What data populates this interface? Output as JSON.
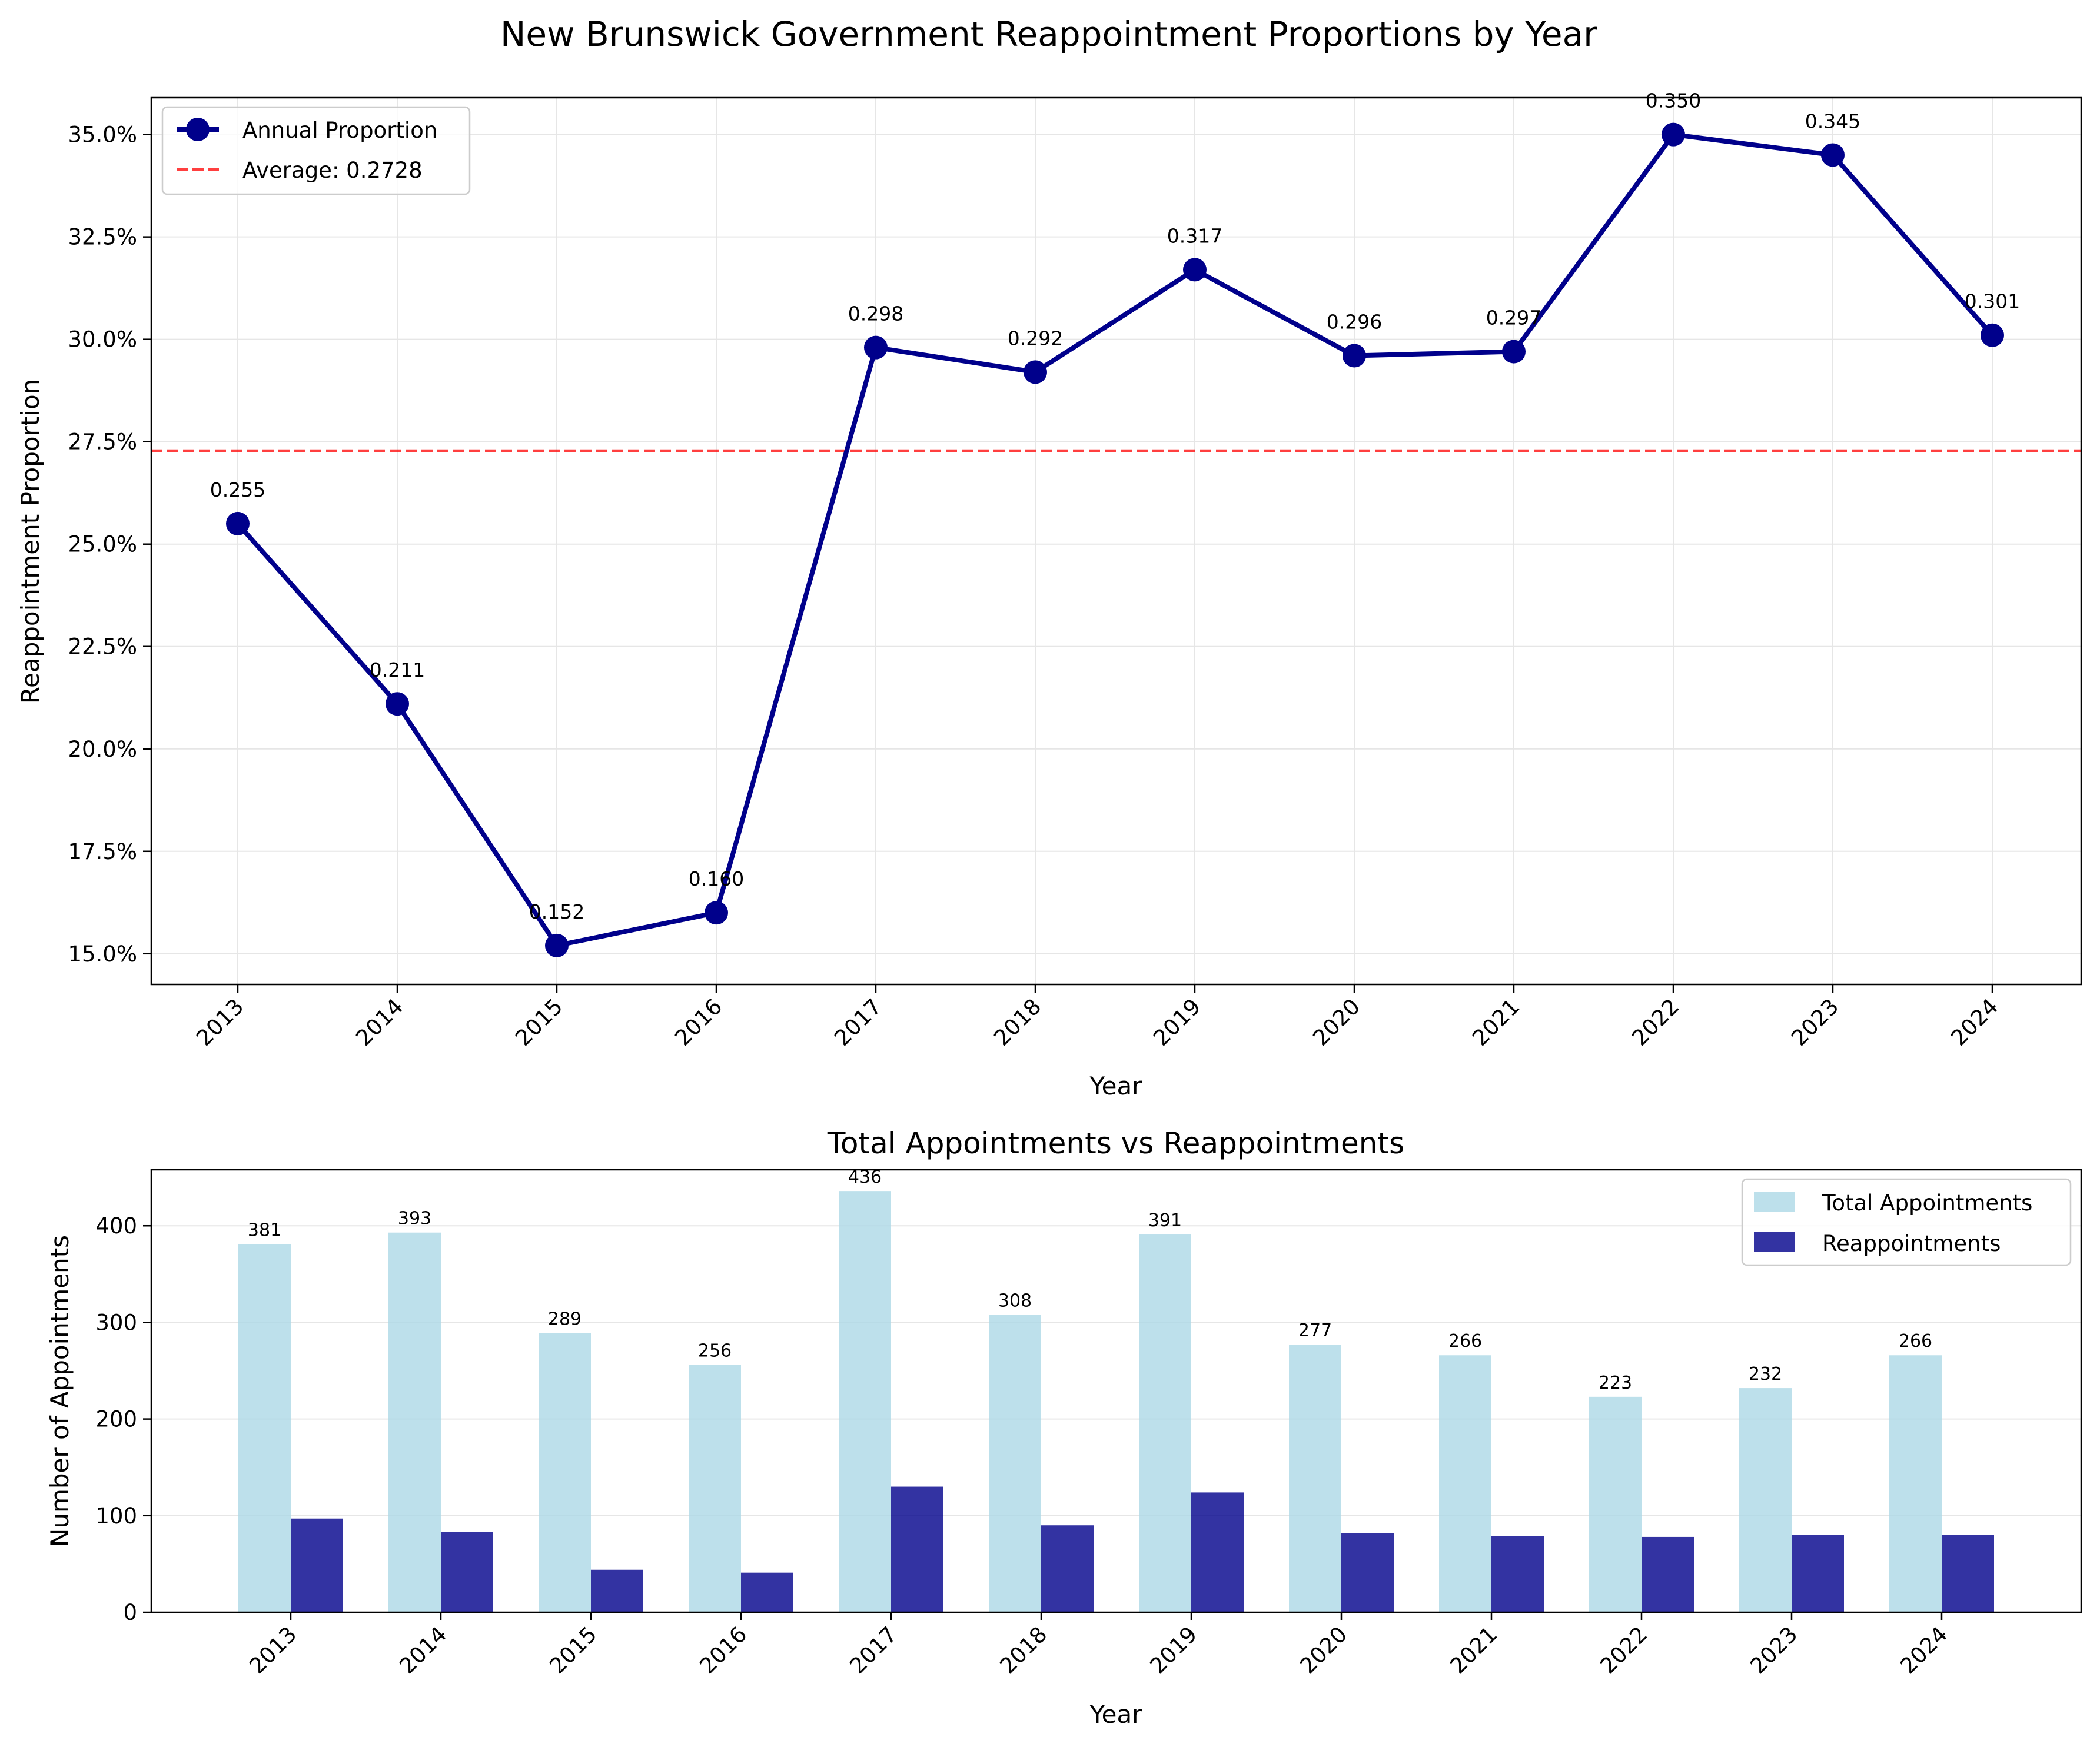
{
  "figure_title": "New Brunswick Government Reappointment Proportions by Year",
  "colors": {
    "line": "#00008b",
    "average": "#ff0000",
    "total_bars": "#add8e6",
    "reappoint_bars": "#00008b",
    "grid": "#e6e6e6"
  },
  "chart_data": [
    {
      "type": "line",
      "title": "",
      "xlabel": "Year",
      "ylabel": "Reappointment Proportion",
      "x": [
        "2013",
        "2014",
        "2015",
        "2016",
        "2017",
        "2018",
        "2019",
        "2020",
        "2021",
        "2022",
        "2023",
        "2024"
      ],
      "series": [
        {
          "name": "Annual Proportion",
          "values": [
            0.255,
            0.211,
            0.152,
            0.16,
            0.298,
            0.292,
            0.317,
            0.296,
            0.297,
            0.35,
            0.345,
            0.301
          ]
        }
      ],
      "data_labels": [
        "0.255",
        "0.211",
        "0.152",
        "0.160",
        "0.298",
        "0.292",
        "0.317",
        "0.296",
        "0.297",
        "0.350",
        "0.345",
        "0.301"
      ],
      "average": {
        "name": "Average: 0.2728",
        "value": 0.2728
      },
      "ylim": [
        0.1425,
        0.359
      ],
      "yticks": [
        0.15,
        0.175,
        0.2,
        0.225,
        0.25,
        0.275,
        0.3,
        0.325,
        0.35
      ],
      "ytick_labels": [
        "15.0%",
        "17.5%",
        "20.0%",
        "22.5%",
        "25.0%",
        "27.5%",
        "30.0%",
        "32.5%",
        "35.0%"
      ],
      "grid": true,
      "legend": "upper-left"
    },
    {
      "type": "bar",
      "title": "Total Appointments vs Reappointments",
      "xlabel": "Year",
      "ylabel": "Number of Appointments",
      "categories": [
        "2013",
        "2014",
        "2015",
        "2016",
        "2017",
        "2018",
        "2019",
        "2020",
        "2021",
        "2022",
        "2023",
        "2024"
      ],
      "series": [
        {
          "name": "Total Appointments",
          "values": [
            381,
            393,
            289,
            256,
            436,
            308,
            391,
            277,
            266,
            223,
            232,
            266
          ]
        },
        {
          "name": "Reappointments",
          "values": [
            97,
            83,
            44,
            41,
            130,
            90,
            124,
            82,
            79,
            78,
            80,
            80
          ]
        }
      ],
      "data_labels": [
        "381",
        "393",
        "289",
        "256",
        "436",
        "308",
        "391",
        "277",
        "266",
        "223",
        "232",
        "266"
      ],
      "ylim": [
        0,
        458
      ],
      "yticks": [
        0,
        100,
        200,
        300,
        400
      ],
      "ytick_labels": [
        "0",
        "100",
        "200",
        "300",
        "400"
      ],
      "grid": true,
      "legend": "upper-right"
    }
  ]
}
